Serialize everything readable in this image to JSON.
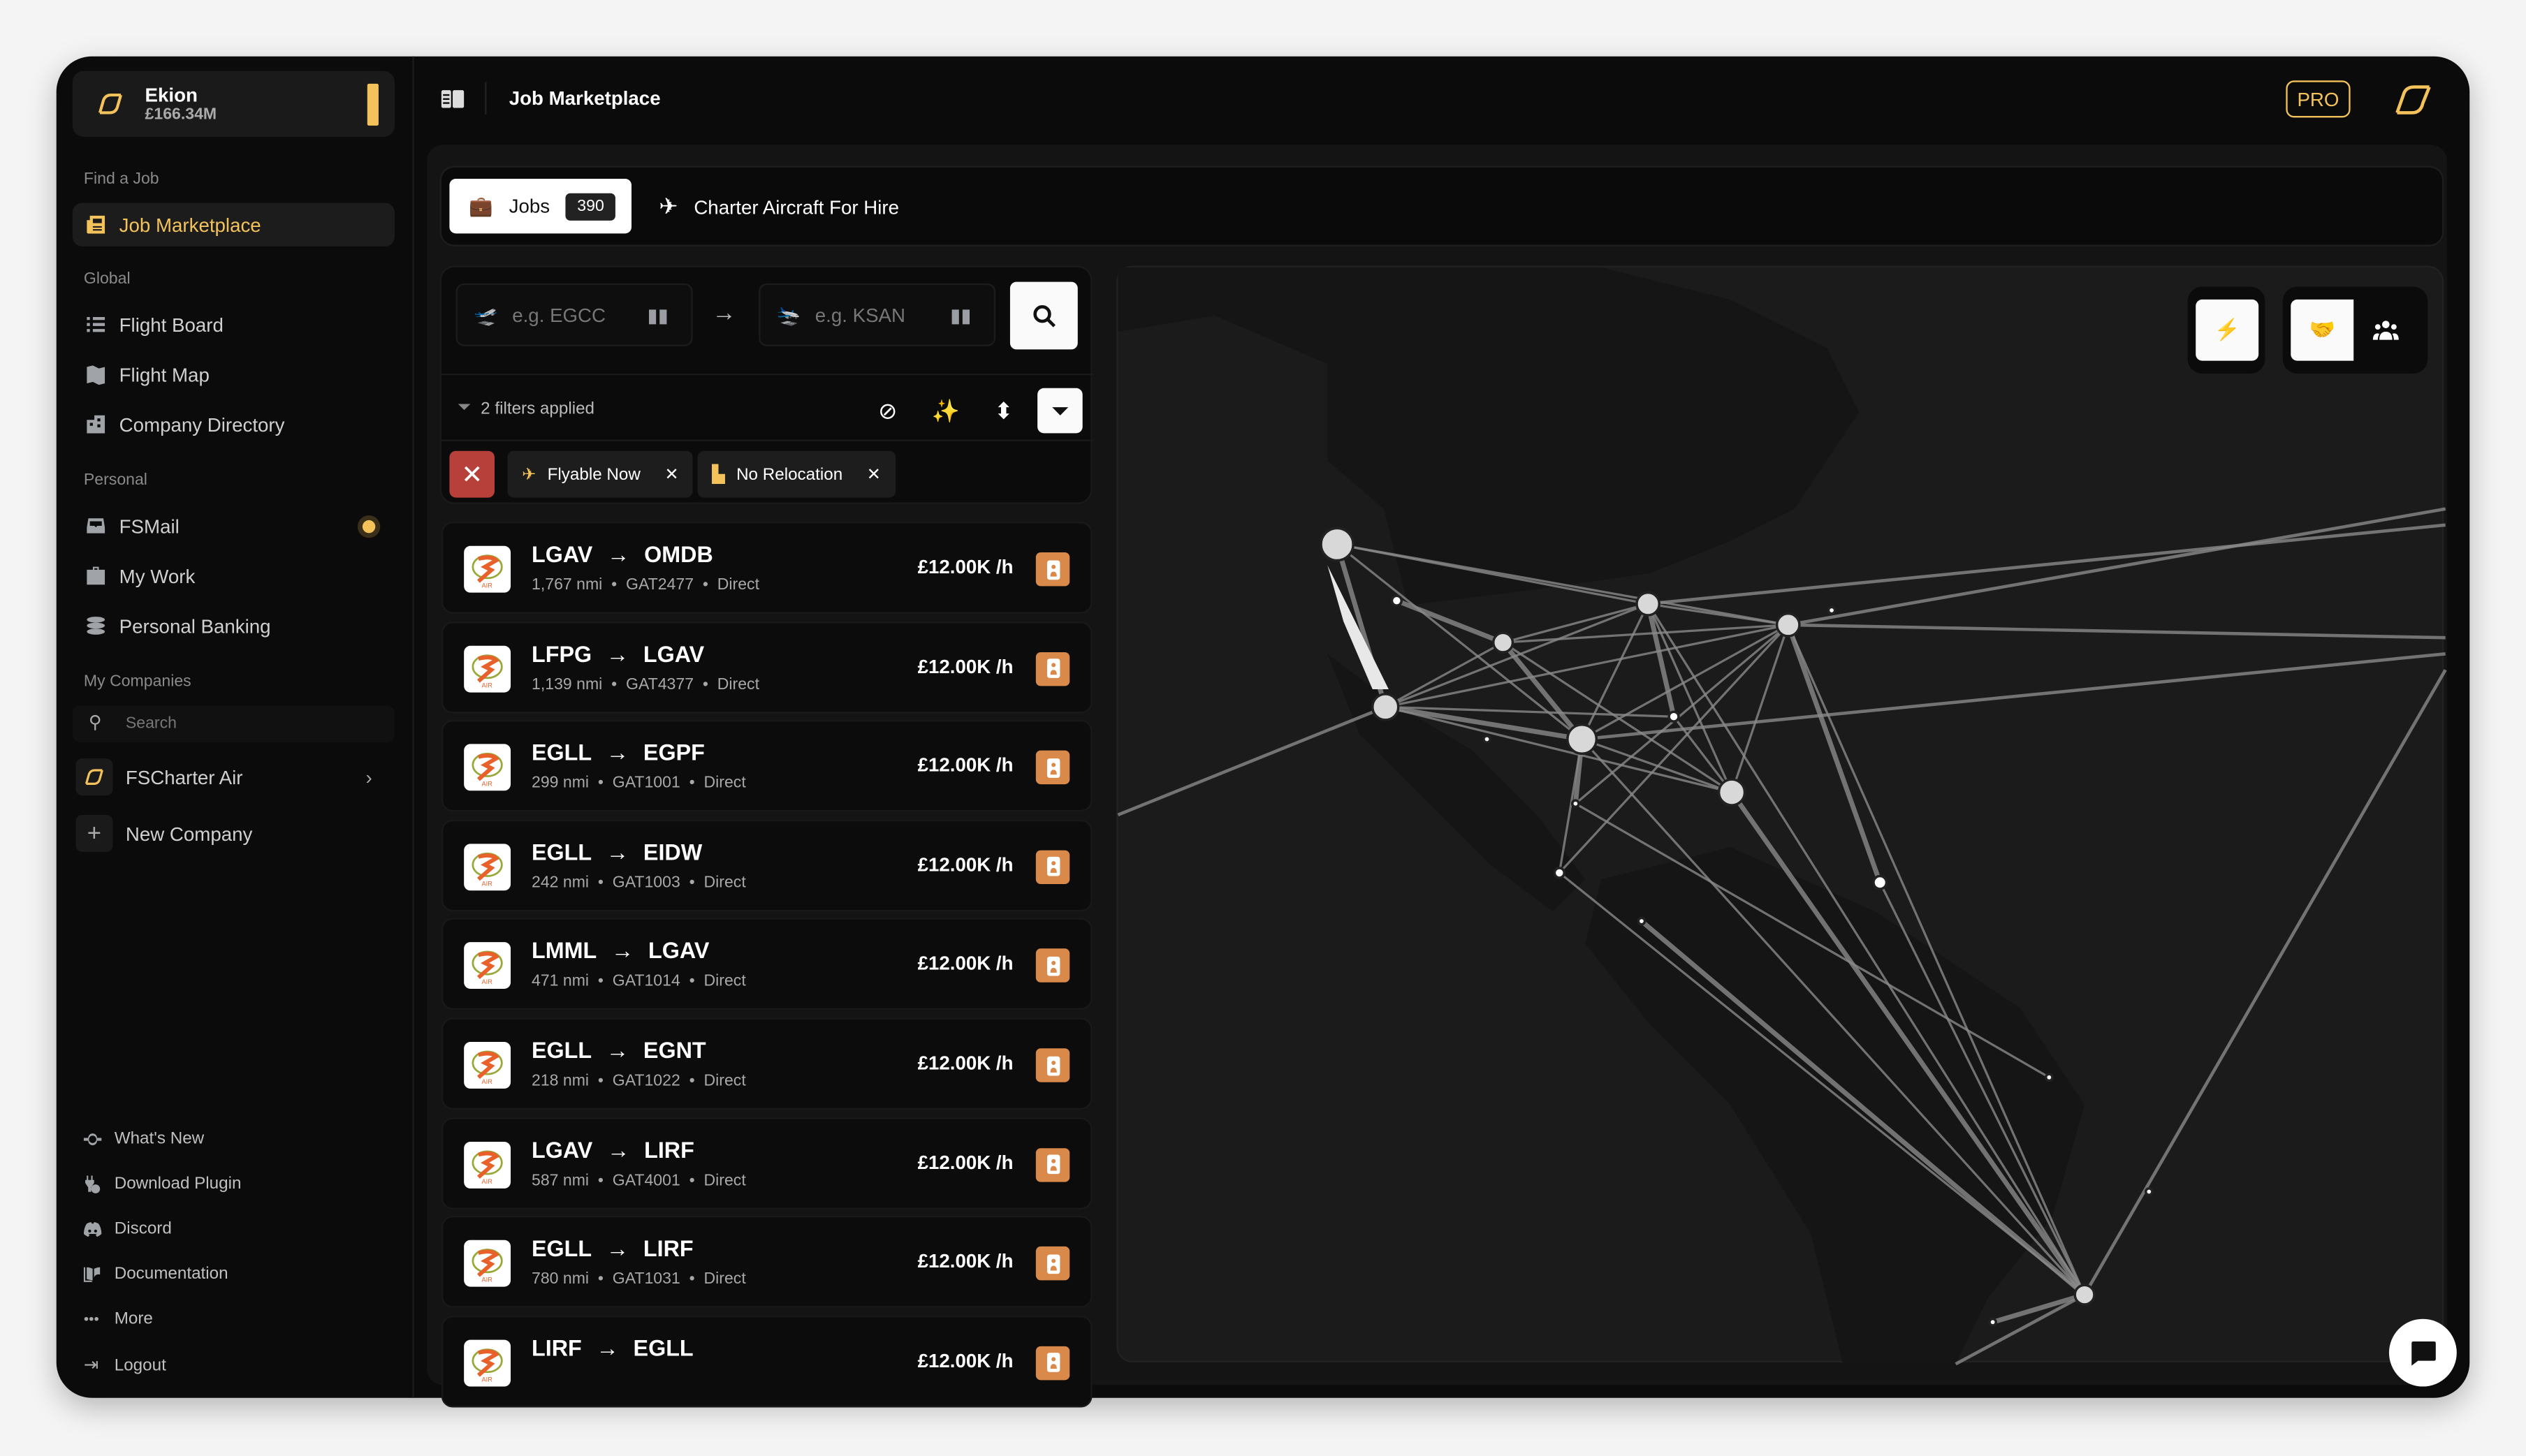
{
  "account": {
    "name": "Ekion",
    "balance": "£166.34M"
  },
  "header": {
    "title": "Job Marketplace",
    "pro_badge": "PRO"
  },
  "sidebar": {
    "find_job": {
      "label": "Find a Job",
      "items": [
        {
          "label": "Job Marketplace",
          "icon": "newspaper-icon",
          "active": true
        }
      ]
    },
    "global": {
      "label": "Global",
      "items": [
        {
          "label": "Flight Board",
          "icon": "list-icon"
        },
        {
          "label": "Flight Map",
          "icon": "map-icon"
        },
        {
          "label": "Company Directory",
          "icon": "building-icon"
        }
      ]
    },
    "personal": {
      "label": "Personal",
      "items": [
        {
          "label": "FSMail",
          "icon": "inbox-icon"
        },
        {
          "label": "My Work",
          "icon": "briefcase-icon"
        },
        {
          "label": "Personal Banking",
          "icon": "coins-icon"
        }
      ]
    },
    "companies": {
      "label": "My Companies",
      "search_placeholder": "Search",
      "items": [
        {
          "label": "FSCharter Air"
        },
        {
          "label": "New Company"
        }
      ]
    },
    "footer": [
      {
        "label": "What's New",
        "icon": "commit-icon"
      },
      {
        "label": "Download Plugin",
        "icon": "plug-download-icon"
      },
      {
        "label": "Discord",
        "icon": "discord-icon"
      },
      {
        "label": "Documentation",
        "icon": "book-info-icon"
      },
      {
        "label": "More",
        "icon": "ellipsis-icon"
      },
      {
        "label": "Logout",
        "icon": "logout-icon"
      }
    ]
  },
  "tabs": {
    "jobs": {
      "label": "Jobs",
      "count": "390"
    },
    "charter": {
      "label": "Charter Aircraft For Hire"
    }
  },
  "search": {
    "from_placeholder": "e.g. EGCC",
    "to_placeholder": "e.g. KSAN"
  },
  "filters": {
    "summary": "2 filters applied",
    "chips": [
      {
        "label": "Flyable Now"
      },
      {
        "label": "No Relocation"
      }
    ]
  },
  "jobs": [
    {
      "from": "LGAV",
      "to": "OMDB",
      "distance": "1,767 nmi",
      "flight": "GAT2477",
      "type": "Direct",
      "pay": "£12.00K /h"
    },
    {
      "from": "LFPG",
      "to": "LGAV",
      "distance": "1,139 nmi",
      "flight": "GAT4377",
      "type": "Direct",
      "pay": "£12.00K /h"
    },
    {
      "from": "EGLL",
      "to": "EGPF",
      "distance": "299 nmi",
      "flight": "GAT1001",
      "type": "Direct",
      "pay": "£12.00K /h"
    },
    {
      "from": "EGLL",
      "to": "EIDW",
      "distance": "242 nmi",
      "flight": "GAT1003",
      "type": "Direct",
      "pay": "£12.00K /h"
    },
    {
      "from": "LMML",
      "to": "LGAV",
      "distance": "471 nmi",
      "flight": "GAT1014",
      "type": "Direct",
      "pay": "£12.00K /h"
    },
    {
      "from": "EGLL",
      "to": "EGNT",
      "distance": "218 nmi",
      "flight": "GAT1022",
      "type": "Direct",
      "pay": "£12.00K /h"
    },
    {
      "from": "LGAV",
      "to": "LIRF",
      "distance": "587 nmi",
      "flight": "GAT4001",
      "type": "Direct",
      "pay": "£12.00K /h"
    },
    {
      "from": "EGLL",
      "to": "LIRF",
      "distance": "780 nmi",
      "flight": "GAT1031",
      "type": "Direct",
      "pay": "£12.00K /h"
    },
    {
      "from": "LIRF",
      "to": "EGLL",
      "distance": "",
      "flight": "",
      "type": "",
      "pay": "£12.00K /h"
    }
  ],
  "colors": {
    "accent": "#f4c25b",
    "danger": "#b8403a",
    "pay_button": "#d9894a",
    "background": "#0b0b0b"
  }
}
